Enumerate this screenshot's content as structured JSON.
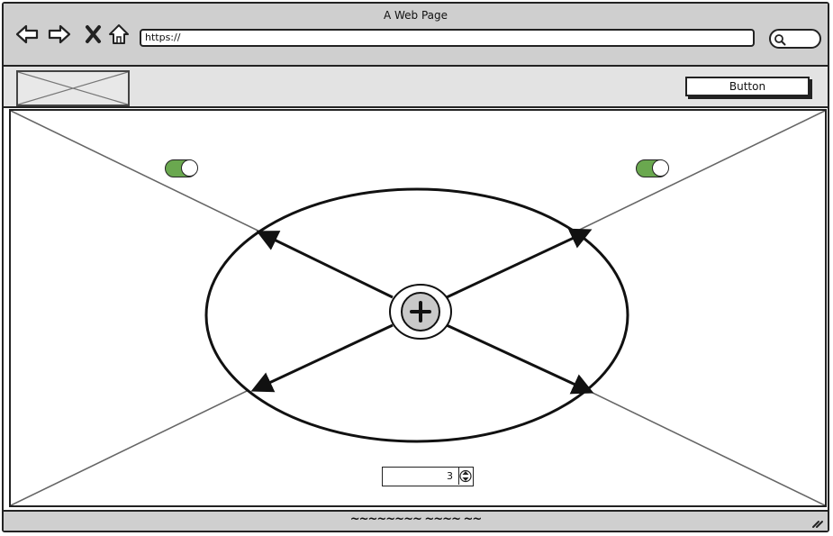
{
  "window": {
    "title": "A Web Page"
  },
  "address_bar": {
    "url": "https://"
  },
  "header": {
    "button_label": "Button"
  },
  "stepper": {
    "value": "3"
  },
  "toggles": {
    "left_on": true,
    "right_on": true
  },
  "status_bar": {
    "text": "~~~~~~~~ ~~~~ ~~"
  },
  "colors": {
    "toggle_on": "#6aa84f",
    "chrome": "#cfcfcf",
    "header_bg": "#e3e3e3"
  },
  "icons": {
    "back": "back-arrow-icon",
    "forward": "forward-arrow-icon",
    "stop": "close-icon",
    "home": "home-icon",
    "search": "search-icon",
    "add": "plus-icon",
    "resize": "resize-grip-icon"
  }
}
